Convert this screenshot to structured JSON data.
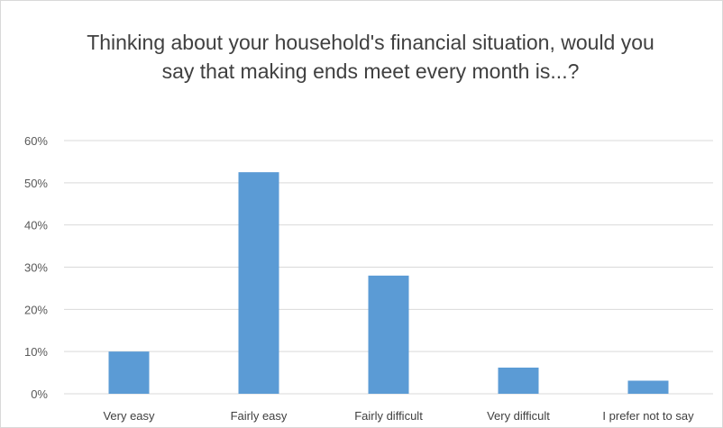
{
  "chart_data": {
    "type": "bar",
    "title": "Thinking about your household's financial situation, would you say that making ends meet every month is...?",
    "categories": [
      "Very easy",
      "Fairly easy",
      "Fairly difficult",
      "Very difficult",
      "I prefer not to say"
    ],
    "values": [
      10,
      52.5,
      28,
      6.2,
      3.1
    ],
    "ylim": [
      0,
      60
    ],
    "yticks": [
      "0%",
      "10%",
      "20%",
      "30%",
      "40%",
      "50%",
      "60%"
    ],
    "y_tick_values": [
      0,
      10,
      20,
      30,
      40,
      50,
      60
    ],
    "xlabel": "",
    "ylabel": "",
    "grid": true,
    "legend": "none",
    "bar_color": "#5b9bd5",
    "grid_color": "#d9d9d9"
  }
}
